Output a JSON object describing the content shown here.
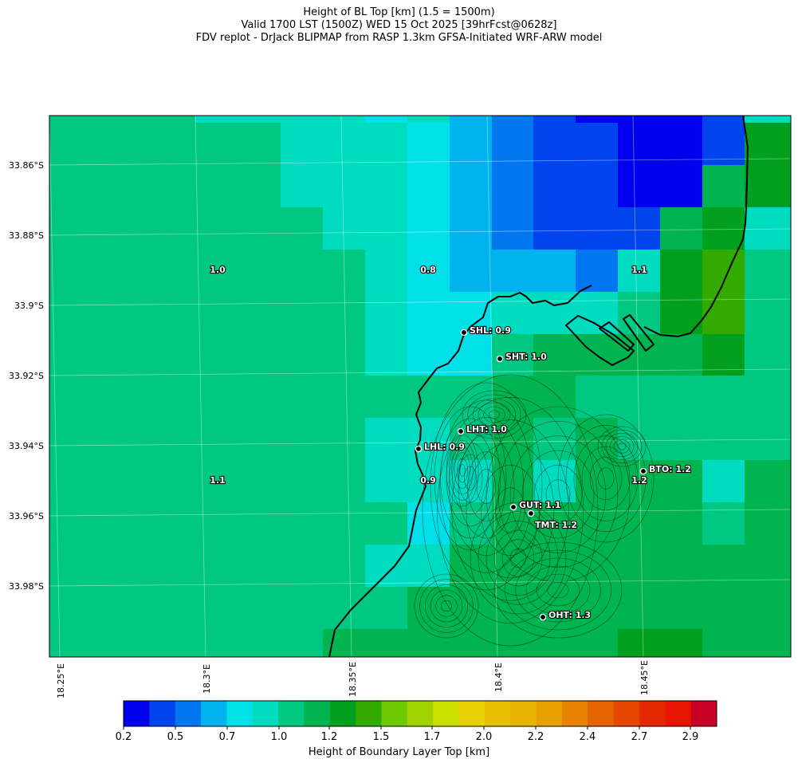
{
  "title": {
    "line1": "Height of BL Top [km] (1.5 = 1500m)",
    "line2": "Valid 1700 LST (1500Z) WED 15 Oct 2025 [39hrFcst@0628z]",
    "line3": "FDV replot - DrJack BLIPMAP from RASP 1.3km GFSA-Initiated WRF-ARW model"
  },
  "axes": {
    "lat_labels": [
      "33.86°S",
      "33.88°S",
      "33.9°S",
      "33.92°S",
      "33.94°S",
      "33.96°S",
      "33.98°S"
    ],
    "lon_labels": [
      "18.25°E",
      "18.3°E",
      "18.35°E",
      "18.4°E",
      "18.45°E"
    ]
  },
  "stations": [
    {
      "code": "SHL",
      "value": "0.9",
      "text": "SHL: 0.9"
    },
    {
      "code": "SHT",
      "value": "1.0",
      "text": "SHT: 1.0"
    },
    {
      "code": "LHT",
      "value": "1.0",
      "text": "LHT: 1.0"
    },
    {
      "code": "LHL",
      "value": "0.9",
      "text": "LHL: 0.9"
    },
    {
      "code": "BTO",
      "value": "1.2",
      "text": "BTO: 1.2"
    },
    {
      "code": "GUT",
      "value": "1.1",
      "text": "GUT: 1.1"
    },
    {
      "code": "TMT",
      "value": "1.2",
      "text": "TMT: 1.2"
    },
    {
      "code": "OHT",
      "value": "1.3",
      "text": "OHT: 1.3"
    }
  ],
  "grid_values": [
    "1.0",
    "0.8",
    "1.1",
    "1.1",
    "0.9",
    "1.2"
  ],
  "colorbar": {
    "title": "Height of Boundary Layer Top [km]",
    "tick_labels": [
      "0.2",
      "0.5",
      "0.7",
      "1.0",
      "1.2",
      "1.5",
      "1.7",
      "2.0",
      "2.2",
      "2.4",
      "2.7",
      "2.9"
    ],
    "colors": [
      "#0000ee",
      "#0044ee",
      "#0077ee",
      "#00b3ee",
      "#00e0e8",
      "#00dcc0",
      "#00c882",
      "#00b450",
      "#00a01e",
      "#32aa00",
      "#6ec800",
      "#a0d200",
      "#cce000",
      "#e6d200",
      "#e6c000",
      "#e6b400",
      "#e6a000",
      "#e68200",
      "#e66400",
      "#e64600",
      "#e62800",
      "#e61400",
      "#c80028"
    ]
  }
}
